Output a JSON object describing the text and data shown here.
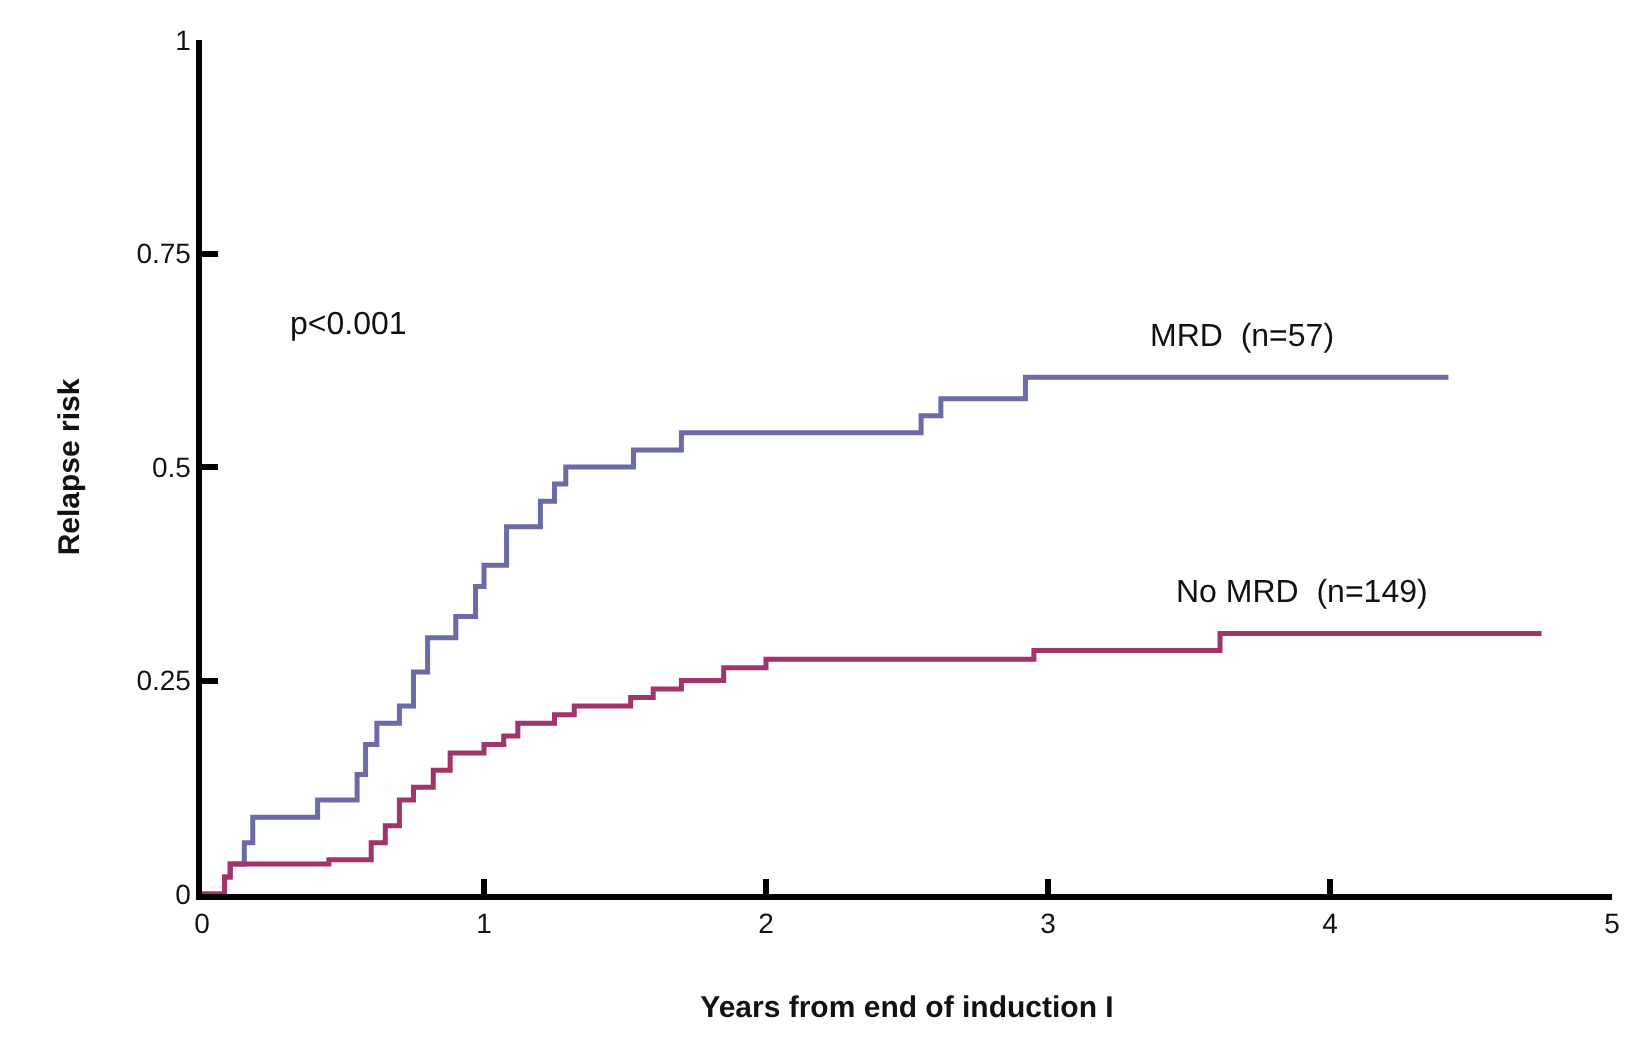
{
  "chart_data": {
    "type": "step",
    "xlabel": "Years from end of induction I",
    "ylabel": "Relapse risk",
    "xlim": [
      0,
      5
    ],
    "xticks": [
      0,
      1,
      2,
      3,
      4,
      5
    ],
    "ylim": [
      0,
      1
    ],
    "yticks": [
      0,
      0.25,
      0.5,
      0.75,
      1
    ],
    "legend": false,
    "marker": "none",
    "line_style": "solid",
    "annotations": [
      "p<0.001"
    ],
    "series": [
      {
        "name": "MRD  (n=57)",
        "color": "#6b6ba8",
        "x": [
          0,
          0.08,
          0.1,
          0.15,
          0.18,
          0.41,
          0.55,
          0.58,
          0.62,
          0.7,
          0.75,
          0.8,
          0.9,
          0.97,
          1.0,
          1.08,
          1.2,
          1.25,
          1.29,
          1.53,
          1.7,
          2.55,
          2.62,
          2.92,
          4.42
        ],
        "values": [
          0,
          0.02,
          0.035,
          0.06,
          0.09,
          0.11,
          0.14,
          0.175,
          0.2,
          0.22,
          0.26,
          0.3,
          0.325,
          0.36,
          0.385,
          0.43,
          0.46,
          0.48,
          0.5,
          0.52,
          0.54,
          0.56,
          0.58,
          0.605,
          0.605
        ]
      },
      {
        "name": "No MRD  (n=149)",
        "color": "#a3336b",
        "x": [
          0,
          0.08,
          0.1,
          0.45,
          0.6,
          0.65,
          0.7,
          0.75,
          0.82,
          0.88,
          1.0,
          1.07,
          1.12,
          1.25,
          1.32,
          1.52,
          1.6,
          1.7,
          1.85,
          2.0,
          2.95,
          3.61,
          4.75
        ],
        "values": [
          0,
          0.02,
          0.035,
          0.04,
          0.06,
          0.08,
          0.11,
          0.125,
          0.145,
          0.165,
          0.175,
          0.185,
          0.2,
          0.21,
          0.22,
          0.23,
          0.24,
          0.25,
          0.265,
          0.275,
          0.285,
          0.305,
          0.305
        ]
      }
    ]
  }
}
